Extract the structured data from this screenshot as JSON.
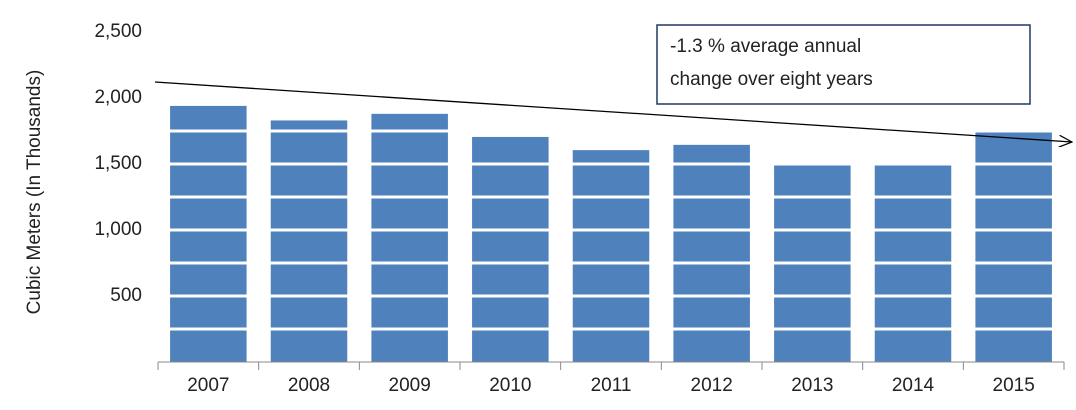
{
  "chart_data": {
    "type": "bar",
    "y_label": "Cubic Meters (In Thousands)",
    "annotation": [
      "-1.3 % average annual",
      "change over eight years"
    ],
    "categories": [
      "2007",
      "2008",
      "2009",
      "2010",
      "2011",
      "2012",
      "2013",
      "2014",
      "2015"
    ],
    "values": [
      1940,
      1830,
      1880,
      1705,
      1605,
      1645,
      1500,
      1500,
      1750
    ],
    "color": "#4f81bd",
    "ylim": [
      0,
      2500
    ],
    "yticks": [
      {
        "value": 500,
        "label": "500"
      },
      {
        "value": 1000,
        "label": "1,000"
      },
      {
        "value": 1500,
        "label": "1,500"
      },
      {
        "value": 2000,
        "label": "2,000"
      },
      {
        "value": 2500,
        "label": "2,500"
      }
    ],
    "minor_yticks": [
      250,
      750,
      1250,
      1750,
      2250
    ],
    "grid": true,
    "grid_color": "#ffffff"
  }
}
